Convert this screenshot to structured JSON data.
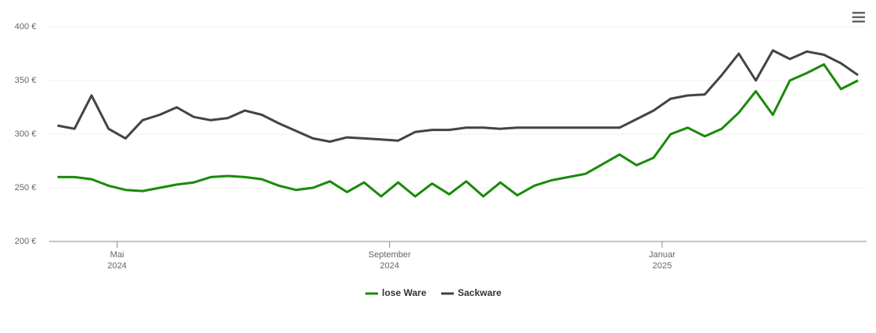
{
  "chart_data": {
    "type": "line",
    "x": [
      "2024-04",
      "2024-04",
      "2024-04",
      "2024-04",
      "2024-05",
      "2024-05",
      "2024-05",
      "2024-05",
      "2024-06",
      "2024-06",
      "2024-06",
      "2024-06",
      "2024-07",
      "2024-07",
      "2024-07",
      "2024-07",
      "2024-08",
      "2024-08",
      "2024-08",
      "2024-08",
      "2024-09",
      "2024-09",
      "2024-09",
      "2024-09",
      "2024-10",
      "2024-10",
      "2024-10",
      "2024-10",
      "2024-11",
      "2024-11",
      "2024-11",
      "2024-11",
      "2024-12",
      "2024-12",
      "2024-12",
      "2024-12",
      "2025-01",
      "2025-01",
      "2025-01",
      "2025-01",
      "2025-02",
      "2025-02",
      "2025-02",
      "2025-02",
      "2025-03",
      "2025-03",
      "2025-03",
      "2025-03"
    ],
    "series": [
      {
        "name": "lose Ware",
        "color": "#1a8a0a",
        "values": [
          260,
          260,
          258,
          252,
          248,
          247,
          250,
          253,
          255,
          260,
          261,
          260,
          258,
          252,
          248,
          250,
          256,
          246,
          255,
          242,
          255,
          242,
          254,
          244,
          256,
          242,
          255,
          243,
          252,
          257,
          260,
          263,
          272,
          281,
          271,
          278,
          300,
          306,
          298,
          305,
          320,
          340,
          318,
          350,
          357,
          365,
          342,
          350
        ]
      },
      {
        "name": "Sackware",
        "color": "#434348",
        "values": [
          308,
          305,
          336,
          305,
          296,
          313,
          318,
          325,
          316,
          313,
          315,
          322,
          318,
          310,
          303,
          296,
          293,
          297,
          296,
          295,
          294,
          302,
          304,
          304,
          306,
          306,
          305,
          306,
          306,
          306,
          306,
          306,
          306,
          306,
          314,
          322,
          333,
          336,
          337,
          355,
          375,
          350,
          378,
          370,
          377,
          374,
          366,
          355
        ]
      }
    ],
    "ylim": [
      200,
      400
    ],
    "yticks": [
      {
        "value": 200,
        "label": "200 €"
      },
      {
        "value": 250,
        "label": "250 €"
      },
      {
        "value": 300,
        "label": "300 €"
      },
      {
        "value": 350,
        "label": "350 €"
      },
      {
        "value": 400,
        "label": "400 €"
      }
    ],
    "xticks": [
      {
        "value": "2024-05",
        "label": [
          "Mai",
          "2024"
        ]
      },
      {
        "value": "2024-09",
        "label": [
          "September",
          "2024"
        ]
      },
      {
        "value": "2025-01",
        "label": [
          "Januar",
          "2025"
        ]
      }
    ],
    "grid": true,
    "legend": "bottom"
  }
}
